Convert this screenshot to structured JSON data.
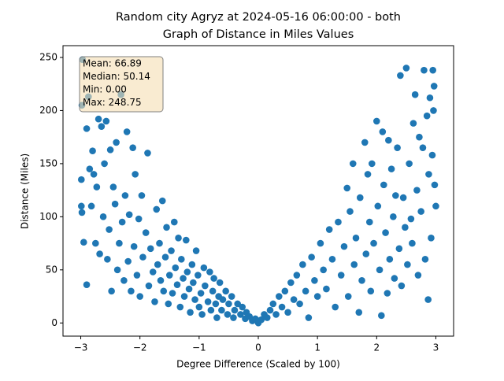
{
  "chart_data": {
    "type": "scatter",
    "title": [
      "Random city Agryz at 2024-05-16 06:00:00  - both",
      "Graph of Distance in Miles Values"
    ],
    "x_label": "Degree Difference (Scaled by 100)",
    "y_label": "Distance (Miles)",
    "annotation": [
      "Mean: 66.89",
      "Median: 50.14",
      "Min: 0.00",
      "Max: 248.75"
    ],
    "color": "#1f77b4",
    "xlim": [
      -3.3,
      3.3
    ],
    "ylim": [
      -12.4,
      261.1
    ],
    "xticks": [
      {
        "value": -3,
        "label": "−3"
      },
      {
        "value": -2,
        "label": "−2"
      },
      {
        "value": -1,
        "label": "−1"
      },
      0,
      1,
      2,
      3
    ],
    "yticks": [
      0,
      50,
      100,
      150,
      200,
      250
    ],
    "x": [
      -2.97,
      -2.98,
      -2.99,
      -2.99,
      -2.98,
      -2.95,
      -2.9,
      -2.9,
      -2.87,
      -2.85,
      -2.82,
      -2.8,
      -2.78,
      -2.75,
      -2.73,
      -2.7,
      -2.68,
      -2.65,
      -2.62,
      -2.6,
      -2.57,
      -2.55,
      -2.52,
      -2.5,
      -2.48,
      -2.45,
      -2.42,
      -2.4,
      -2.38,
      -2.35,
      -2.32,
      -2.3,
      -2.27,
      -2.25,
      -2.22,
      -2.2,
      -2.18,
      -2.15,
      -2.12,
      -2.1,
      -2.08,
      -2.05,
      -2.02,
      -2.0,
      -1.97,
      -1.95,
      -1.9,
      -1.87,
      -1.85,
      -1.82,
      -1.78,
      -1.75,
      -1.72,
      -1.7,
      -1.67,
      -1.65,
      -1.62,
      -1.6,
      -1.57,
      -1.55,
      -1.52,
      -1.5,
      -1.47,
      -1.45,
      -1.42,
      -1.4,
      -1.37,
      -1.35,
      -1.32,
      -1.3,
      -1.27,
      -1.25,
      -1.22,
      -1.2,
      -1.17,
      -1.15,
      -1.12,
      -1.1,
      -1.07,
      -1.05,
      -1.02,
      -1.0,
      -0.97,
      -0.95,
      -0.92,
      -0.9,
      -0.85,
      -0.82,
      -0.8,
      -0.77,
      -0.75,
      -0.72,
      -0.7,
      -0.67,
      -0.65,
      -0.62,
      -0.6,
      -0.55,
      -0.52,
      -0.5,
      -0.45,
      -0.42,
      -0.4,
      -0.35,
      -0.3,
      -0.27,
      -0.22,
      -0.2,
      -0.15,
      -0.1,
      -0.05,
      0.0,
      0.05,
      0.1,
      0.15,
      0.2,
      0.25,
      0.3,
      0.35,
      0.4,
      0.45,
      0.5,
      0.55,
      0.6,
      0.65,
      0.7,
      0.75,
      0.8,
      0.85,
      0.9,
      0.95,
      1.0,
      1.05,
      1.1,
      1.15,
      1.2,
      1.25,
      1.3,
      1.35,
      1.4,
      1.45,
      1.5,
      1.52,
      1.55,
      1.6,
      1.62,
      1.65,
      1.7,
      1.72,
      1.75,
      1.8,
      1.82,
      1.85,
      1.88,
      1.9,
      1.92,
      1.95,
      2.0,
      2.02,
      2.05,
      2.08,
      2.1,
      2.12,
      2.15,
      2.18,
      2.2,
      2.22,
      2.25,
      2.28,
      2.3,
      2.32,
      2.35,
      2.38,
      2.4,
      2.42,
      2.45,
      2.48,
      2.5,
      2.52,
      2.55,
      2.58,
      2.6,
      2.62,
      2.65,
      2.68,
      2.7,
      2.72,
      2.75,
      2.78,
      2.8,
      2.82,
      2.85,
      2.87,
      2.88,
      2.9,
      2.92,
      2.94,
      2.95,
      2.96,
      2.97,
      2.98,
      3.0
    ],
    "values": [
      248,
      205,
      135,
      110,
      104,
      76,
      36,
      183,
      213,
      145,
      110,
      162,
      140,
      75,
      128,
      192,
      65,
      185,
      100,
      150,
      190,
      60,
      88,
      163,
      30,
      128,
      112,
      170,
      50,
      75,
      215,
      95,
      40,
      120,
      180,
      58,
      102,
      30,
      165,
      72,
      140,
      45,
      98,
      25,
      120,
      62,
      85,
      160,
      35,
      70,
      48,
      20,
      107,
      55,
      75,
      40,
      115,
      30,
      62,
      90,
      18,
      45,
      68,
      28,
      95,
      52,
      36,
      80,
      15,
      60,
      42,
      25,
      78,
      48,
      32,
      10,
      55,
      38,
      22,
      68,
      45,
      15,
      28,
      8,
      52,
      35,
      20,
      48,
      12,
      30,
      42,
      18,
      5,
      25,
      38,
      12,
      22,
      30,
      8,
      18,
      25,
      5,
      12,
      18,
      8,
      15,
      4,
      10,
      6,
      2,
      4,
      0,
      3,
      8,
      5,
      12,
      18,
      8,
      25,
      15,
      30,
      10,
      38,
      22,
      45,
      18,
      55,
      30,
      5,
      62,
      40,
      25,
      75,
      50,
      32,
      88,
      60,
      15,
      95,
      45,
      72,
      127,
      25,
      105,
      150,
      55,
      80,
      10,
      118,
      40,
      170,
      65,
      140,
      95,
      30,
      150,
      75,
      190,
      110,
      50,
      7,
      180,
      130,
      85,
      28,
      172,
      60,
      145,
      100,
      42,
      120,
      165,
      70,
      233,
      35,
      118,
      90,
      240,
      55,
      150,
      98,
      75,
      188,
      215,
      125,
      45,
      175,
      105,
      165,
      238,
      60,
      195,
      22,
      140,
      212,
      80,
      158,
      238,
      200,
      223,
      130,
      110
    ]
  }
}
